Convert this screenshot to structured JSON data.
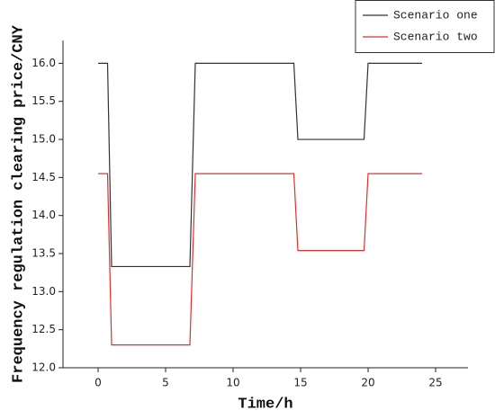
{
  "chart_data": {
    "type": "line",
    "xlabel": "Time/h",
    "ylabel": "Frequency regulation clearing price/CNY",
    "x": [
      0,
      0.7,
      1,
      6.8,
      7.2,
      14.5,
      14.8,
      19.7,
      20,
      24
    ],
    "series": [
      {
        "name": "Scenario one",
        "color": "#333333",
        "values": [
          16,
          16,
          13.33,
          13.33,
          16,
          16,
          15,
          15,
          16,
          16
        ]
      },
      {
        "name": "Scenario two",
        "color": "#e0302a",
        "values": [
          14.55,
          14.55,
          12.3,
          12.3,
          14.55,
          14.55,
          13.54,
          13.54,
          14.55,
          14.55
        ]
      }
    ],
    "xlim": [
      -2.6,
      27.4
    ],
    "xticks": [
      0,
      5,
      10,
      15,
      20,
      25
    ],
    "ylim": [
      12,
      16.3
    ],
    "yticks": [
      {
        "value": 12,
        "label": "12.0"
      },
      {
        "value": 12.5,
        "label": "12.5"
      },
      {
        "value": 13,
        "label": "13.0"
      },
      {
        "value": 13.5,
        "label": "13.5"
      },
      {
        "value": 14,
        "label": "14.0"
      },
      {
        "value": 14.5,
        "label": "14.5"
      },
      {
        "value": 15,
        "label": "15.0"
      },
      {
        "value": 15.5,
        "label": "15.5"
      },
      {
        "value": 16,
        "label": "16.0"
      }
    ],
    "legend": "top-right",
    "grid": false
  }
}
